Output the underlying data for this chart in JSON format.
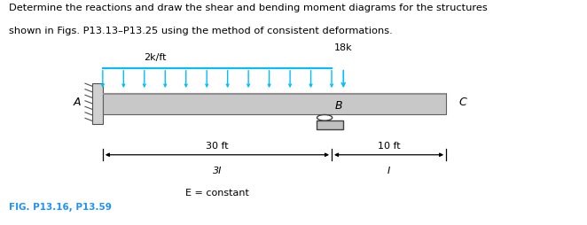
{
  "title_line1": "Determine the reactions and draw the shear and bending moment diagrams for the structures",
  "title_line2": "shown in Figs. P13.13–P13.25 using the method of consistent deformations.",
  "fig_label": "FIG. P13.16, P13.59",
  "fig_label_color": "#1E90FF",
  "background_color": "#ffffff",
  "load_color": "#00BFFF",
  "text_color": "#000000",
  "load_label": "2k/ft",
  "point_load_label": "18k",
  "label_A": "A",
  "label_B": "B",
  "label_C": "C",
  "dim_left": "30 ft",
  "dim_right": "10 ft",
  "moment_left": "3I",
  "moment_right": "I",
  "eq_label": "E = constant",
  "bx0": 0.175,
  "bxB": 0.565,
  "bxC": 0.76,
  "by": 0.54,
  "bh": 0.048
}
